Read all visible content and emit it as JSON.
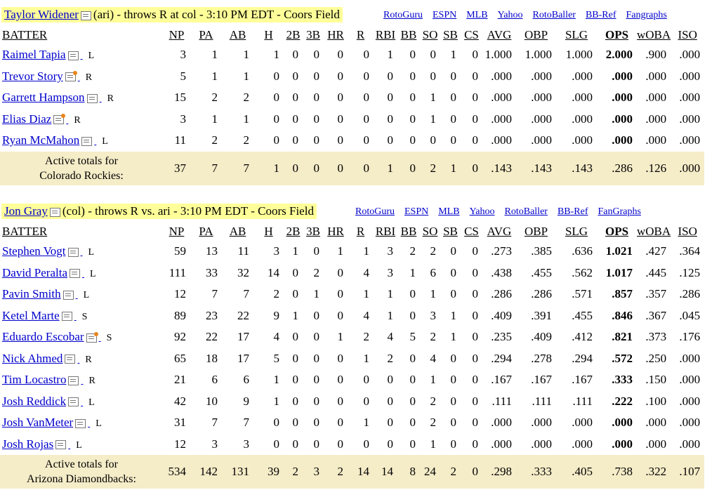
{
  "columns": [
    "BATTER",
    "NP",
    "PA",
    "AB",
    "H",
    "2B",
    "3B",
    "HR",
    "R",
    "RBI",
    "BB",
    "SO",
    "SB",
    "CS",
    "AVG",
    "OBP",
    "SLG",
    "OPS",
    "wOBA",
    "ISO"
  ],
  "games": [
    {
      "pitcher_name": "Taylor Widener",
      "pitcher_info": "(ari) - throws R at col - 3:10 PM EDT - Coors Field",
      "links": [
        "RotoGuru",
        "ESPN",
        "MLB",
        "Yahoo",
        "RotoBaller",
        "BB-Ref",
        "Fangraphs"
      ],
      "batters": [
        {
          "name": "Raimel Tapia",
          "hot": false,
          "hand": "L",
          "stats": [
            "3",
            "1",
            "1",
            "1",
            "0",
            "0",
            "0",
            "0",
            "1",
            "0",
            "0",
            "1",
            "0",
            "1.000",
            "1.000",
            "1.000",
            "2.000",
            ".900",
            ".000"
          ]
        },
        {
          "name": "Trevor Story",
          "hot": true,
          "hand": "R",
          "stats": [
            "5",
            "1",
            "1",
            "0",
            "0",
            "0",
            "0",
            "0",
            "0",
            "0",
            "0",
            "0",
            "0",
            ".000",
            ".000",
            ".000",
            ".000",
            ".000",
            ".000"
          ]
        },
        {
          "name": "Garrett Hampson",
          "hot": false,
          "hand": "R",
          "stats": [
            "15",
            "2",
            "2",
            "0",
            "0",
            "0",
            "0",
            "0",
            "0",
            "0",
            "1",
            "0",
            "0",
            ".000",
            ".000",
            ".000",
            ".000",
            ".000",
            ".000"
          ]
        },
        {
          "name": "Elias Diaz",
          "hot": true,
          "hand": "R",
          "stats": [
            "3",
            "1",
            "1",
            "0",
            "0",
            "0",
            "0",
            "0",
            "0",
            "0",
            "1",
            "0",
            "0",
            ".000",
            ".000",
            ".000",
            ".000",
            ".000",
            ".000"
          ]
        },
        {
          "name": "Ryan McMahon",
          "hot": false,
          "hand": "L",
          "stats": [
            "11",
            "2",
            "2",
            "0",
            "0",
            "0",
            "0",
            "0",
            "0",
            "0",
            "0",
            "0",
            "0",
            ".000",
            ".000",
            ".000",
            ".000",
            ".000",
            ".000"
          ]
        }
      ],
      "totals": {
        "label_1": "Active totals for",
        "label_2": "Colorado Rockies:",
        "stats": [
          "37",
          "7",
          "7",
          "1",
          "0",
          "0",
          "0",
          "0",
          "1",
          "0",
          "2",
          "1",
          "0",
          ".143",
          ".143",
          ".143",
          ".286",
          ".126",
          ".000"
        ]
      }
    },
    {
      "pitcher_name": "Jon Gray",
      "pitcher_info": "(col) - throws R vs. ari - 3:10 PM EDT - Coors Field",
      "links": [
        "RotoGuru",
        "ESPN",
        "MLB",
        "Yahoo",
        "RotoBaller",
        "BB-Ref",
        "FanGraphs"
      ],
      "batters": [
        {
          "name": "Stephen Vogt",
          "hot": false,
          "hand": "L",
          "stats": [
            "59",
            "13",
            "11",
            "3",
            "1",
            "0",
            "1",
            "1",
            "3",
            "2",
            "2",
            "0",
            "0",
            ".273",
            ".385",
            ".636",
            "1.021",
            ".427",
            ".364"
          ]
        },
        {
          "name": "David Peralta",
          "hot": false,
          "hand": "L",
          "stats": [
            "111",
            "33",
            "32",
            "14",
            "0",
            "2",
            "0",
            "4",
            "3",
            "1",
            "6",
            "0",
            "0",
            ".438",
            ".455",
            ".562",
            "1.017",
            ".445",
            ".125"
          ]
        },
        {
          "name": "Pavin Smith",
          "hot": false,
          "hand": "L",
          "stats": [
            "12",
            "7",
            "7",
            "2",
            "0",
            "1",
            "0",
            "1",
            "1",
            "0",
            "1",
            "0",
            "0",
            ".286",
            ".286",
            ".571",
            ".857",
            ".357",
            ".286"
          ]
        },
        {
          "name": "Ketel Marte",
          "hot": false,
          "hand": "S",
          "stats": [
            "89",
            "23",
            "22",
            "9",
            "1",
            "0",
            "0",
            "4",
            "1",
            "0",
            "3",
            "1",
            "0",
            ".409",
            ".391",
            ".455",
            ".846",
            ".367",
            ".045"
          ]
        },
        {
          "name": "Eduardo Escobar",
          "hot": true,
          "hand": "S",
          "stats": [
            "92",
            "22",
            "17",
            "4",
            "0",
            "0",
            "1",
            "2",
            "4",
            "5",
            "2",
            "1",
            "0",
            ".235",
            ".409",
            ".412",
            ".821",
            ".373",
            ".176"
          ]
        },
        {
          "name": "Nick Ahmed",
          "hot": false,
          "hand": "R",
          "stats": [
            "65",
            "18",
            "17",
            "5",
            "0",
            "0",
            "0",
            "1",
            "2",
            "0",
            "4",
            "0",
            "0",
            ".294",
            ".278",
            ".294",
            ".572",
            ".250",
            ".000"
          ]
        },
        {
          "name": "Tim Locastro",
          "hot": false,
          "hand": "R",
          "stats": [
            "21",
            "6",
            "6",
            "1",
            "0",
            "0",
            "0",
            "0",
            "0",
            "0",
            "1",
            "0",
            "0",
            ".167",
            ".167",
            ".167",
            ".333",
            ".150",
            ".000"
          ]
        },
        {
          "name": "Josh Reddick",
          "hot": false,
          "hand": "L",
          "stats": [
            "42",
            "10",
            "9",
            "1",
            "0",
            "0",
            "0",
            "0",
            "0",
            "0",
            "2",
            "0",
            "0",
            ".111",
            ".111",
            ".111",
            ".222",
            ".100",
            ".000"
          ]
        },
        {
          "name": "Josh VanMeter",
          "hot": false,
          "hand": "L",
          "stats": [
            "31",
            "7",
            "7",
            "0",
            "0",
            "0",
            "0",
            "1",
            "0",
            "0",
            "2",
            "0",
            "0",
            ".000",
            ".000",
            ".000",
            ".000",
            ".000",
            ".000"
          ]
        },
        {
          "name": "Josh Rojas",
          "hot": false,
          "hand": "L",
          "stats": [
            "12",
            "3",
            "3",
            "0",
            "0",
            "0",
            "0",
            "0",
            "0",
            "0",
            "1",
            "0",
            "0",
            ".000",
            ".000",
            ".000",
            ".000",
            ".000",
            ".000"
          ]
        }
      ],
      "totals": {
        "label_1": "Active totals for",
        "label_2": "Arizona Diamondbacks:",
        "stats": [
          "534",
          "142",
          "131",
          "39",
          "2",
          "3",
          "2",
          "14",
          "14",
          "8",
          "24",
          "2",
          "0",
          ".298",
          ".333",
          ".405",
          ".738",
          ".322",
          ".107"
        ]
      }
    }
  ]
}
